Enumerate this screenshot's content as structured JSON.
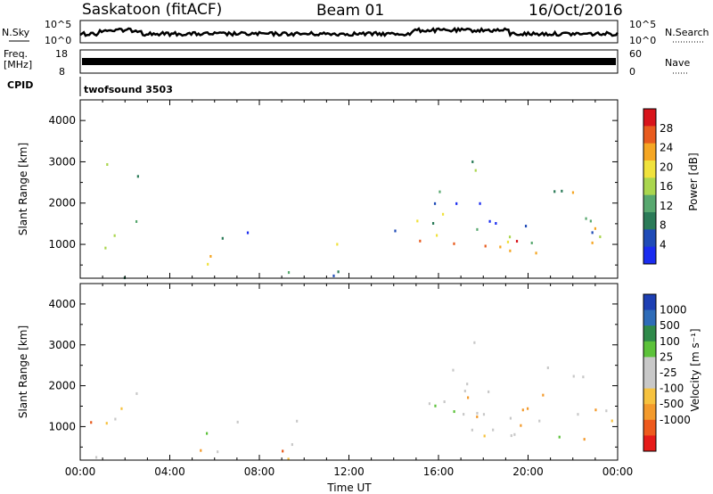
{
  "header": {
    "title": "Saskatoon (fitACF)",
    "beam": "Beam 01",
    "date": "16/Oct/2016"
  },
  "colors": {
    "power": [
      "#1a2cf0",
      "#1f4bb7",
      "#2b7b58",
      "#58a86f",
      "#aad64e",
      "#f0e23c",
      "#f5a623",
      "#e85b1e",
      "#d8141b"
    ],
    "velocity": [
      "#e61b19",
      "#ee5a1d",
      "#f39a2c",
      "#f6c23f",
      "#c8c8c8",
      "#c8c8c8",
      "#5cc23a",
      "#2f8a4a",
      "#2e6cb8",
      "#1d3fb3"
    ]
  },
  "top_panels": {
    "nsky_label": "N.Sky",
    "nsky_ticks": [
      "10^5",
      "10^0"
    ],
    "nsearch_label": "N.Search",
    "nsearch_ticks": [
      "10^5",
      "10^0"
    ],
    "freq_label_1": "Freq.",
    "freq_label_2": "[MHz]",
    "freq_ticks": [
      "18",
      "8"
    ],
    "nave_label": "Nave",
    "nave_ticks": [
      "60",
      "0"
    ],
    "cpid_label": "CPID",
    "cpid_value": "twofsound 3503"
  },
  "chart_data": [
    {
      "type": "heatmap",
      "name": "power",
      "ylabel": "Slant Range [km]",
      "ylim": [
        180,
        4500
      ],
      "y_ticks": [
        "1000",
        "2000",
        "3000",
        "4000"
      ],
      "y_tick_values": [
        1000,
        2000,
        3000,
        4000
      ],
      "colorbar_label": "Power [dB]",
      "colorbar_ticks": [
        "28",
        "24",
        "20",
        "16",
        "12",
        "8",
        "4"
      ],
      "colorbar_tick_values": [
        28,
        24,
        20,
        16,
        12,
        8,
        4
      ],
      "colorbar_range": [
        0,
        32
      ]
    },
    {
      "type": "heatmap",
      "name": "velocity",
      "ylabel": "Slant Range [km]",
      "ylim": [
        180,
        4500
      ],
      "y_ticks": [
        "1000",
        "2000",
        "3000",
        "4000"
      ],
      "y_tick_values": [
        1000,
        2000,
        3000,
        4000
      ],
      "colorbar_label": "Velocity [m s⁻¹]",
      "colorbar_ticks": [
        "1000",
        "500",
        "100",
        "25",
        "-25",
        "-100",
        "-500",
        "-1000"
      ]
    }
  ],
  "x_axis": {
    "xlabel": "Time UT",
    "ticks": [
      "00:00",
      "04:00",
      "08:00",
      "12:00",
      "16:00",
      "20:00",
      "00:00"
    ],
    "tick_hours": [
      0,
      4,
      8,
      12,
      16,
      20,
      24
    ],
    "xlim_hours": [
      0,
      24
    ]
  }
}
